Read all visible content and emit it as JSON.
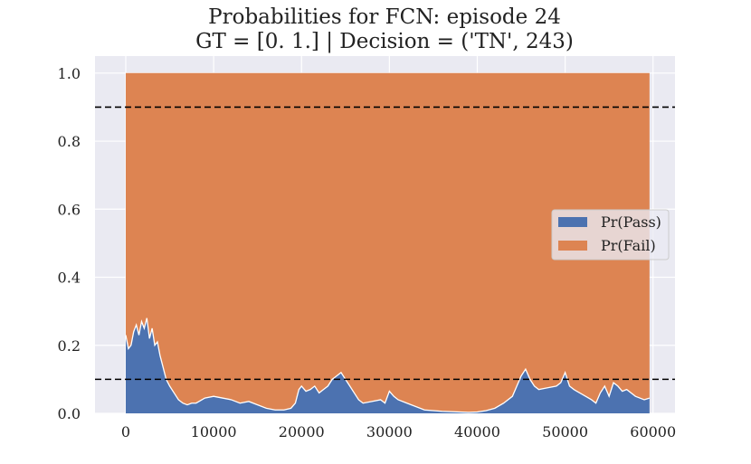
{
  "chart_data": {
    "type": "area",
    "title": "Probabilities for FCN: episode 24",
    "subtitle": "GT = [0. 1.] | Decision = ('TN', 243)",
    "xlabel": "",
    "ylabel": "",
    "xlim": [
      -3500,
      62500
    ],
    "ylim": [
      0.0,
      1.05
    ],
    "x_ticks": [
      0,
      10000,
      20000,
      30000,
      40000,
      50000,
      60000
    ],
    "x_tick_labels": [
      "0",
      "10000",
      "20000",
      "30000",
      "40000",
      "50000",
      "60000"
    ],
    "y_ticks": [
      0.0,
      0.2,
      0.4,
      0.6,
      0.8,
      1.0
    ],
    "y_tick_labels": [
      "0.0",
      "0.2",
      "0.4",
      "0.6",
      "0.8",
      "1.0"
    ],
    "grid": true,
    "stacked": true,
    "legend_position": "center-right",
    "thresholds": [
      0.9,
      0.1
    ],
    "series": [
      {
        "name": "Pr(Pass)",
        "color": "#4c72b0",
        "x": [
          0,
          300,
          600,
          900,
          1200,
          1500,
          1800,
          2100,
          2400,
          2700,
          3000,
          3300,
          3600,
          3900,
          4200,
          4600,
          5000,
          5500,
          6000,
          6500,
          7000,
          7500,
          8000,
          9000,
          10000,
          11000,
          12000,
          13000,
          14000,
          15000,
          16000,
          17000,
          18000,
          18800,
          19300,
          19700,
          20000,
          20500,
          21000,
          21500,
          22000,
          22500,
          23000,
          23500,
          24000,
          24500,
          25000,
          25500,
          26000,
          26500,
          27000,
          28000,
          29000,
          29500,
          30000,
          30500,
          31000,
          32000,
          33000,
          34000,
          35000,
          36000,
          37000,
          38000,
          39000,
          40000,
          41000,
          42000,
          43000,
          44000,
          44500,
          45000,
          45500,
          46000,
          46500,
          47000,
          48000,
          49000,
          49500,
          50000,
          50500,
          51000,
          52000,
          53000,
          53500,
          54000,
          54500,
          55000,
          55500,
          56000,
          56500,
          57000,
          58000,
          59000,
          59600
        ],
        "values": [
          0.23,
          0.19,
          0.2,
          0.24,
          0.26,
          0.23,
          0.27,
          0.25,
          0.28,
          0.22,
          0.25,
          0.2,
          0.21,
          0.17,
          0.14,
          0.1,
          0.08,
          0.06,
          0.04,
          0.03,
          0.025,
          0.03,
          0.03,
          0.045,
          0.05,
          0.045,
          0.04,
          0.03,
          0.035,
          0.025,
          0.015,
          0.01,
          0.01,
          0.015,
          0.03,
          0.07,
          0.08,
          0.065,
          0.07,
          0.08,
          0.06,
          0.07,
          0.08,
          0.1,
          0.11,
          0.12,
          0.1,
          0.08,
          0.06,
          0.04,
          0.03,
          0.035,
          0.04,
          0.03,
          0.065,
          0.05,
          0.04,
          0.03,
          0.02,
          0.01,
          0.008,
          0.006,
          0.005,
          0.004,
          0.003,
          0.004,
          0.008,
          0.015,
          0.03,
          0.05,
          0.08,
          0.11,
          0.13,
          0.1,
          0.08,
          0.07,
          0.075,
          0.08,
          0.09,
          0.12,
          0.08,
          0.07,
          0.055,
          0.04,
          0.03,
          0.06,
          0.08,
          0.05,
          0.09,
          0.08,
          0.065,
          0.07,
          0.05,
          0.04,
          0.045
        ]
      },
      {
        "name": "Pr(Fail)",
        "color": "#dd8452"
      }
    ]
  }
}
